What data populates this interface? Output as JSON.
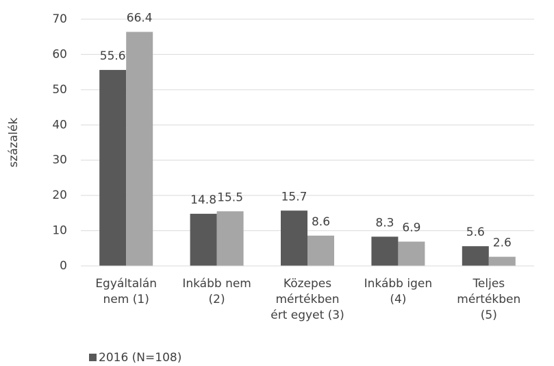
{
  "chart_data": {
    "type": "bar",
    "y_label": "százalék",
    "categories": [
      "Egyáltalán nem (1)",
      "Inkább nem (2)",
      "Közepes mértékben ért egyet (3)",
      "Inkább igen (4)",
      "Teljes mértékben (5)"
    ],
    "series": [
      {
        "name": "2016 (N=108)",
        "color": "#595959",
        "values": [
          55.6,
          14.8,
          15.7,
          8.3,
          5.6
        ]
      },
      {
        "color": "#a6a6a6",
        "values": [
          66.4,
          15.5,
          8.6,
          6.9,
          2.6
        ]
      }
    ],
    "ylim": [
      0,
      70
    ],
    "yticks": [
      0,
      10,
      20,
      30,
      40,
      50,
      60,
      70
    ],
    "grid": true
  }
}
